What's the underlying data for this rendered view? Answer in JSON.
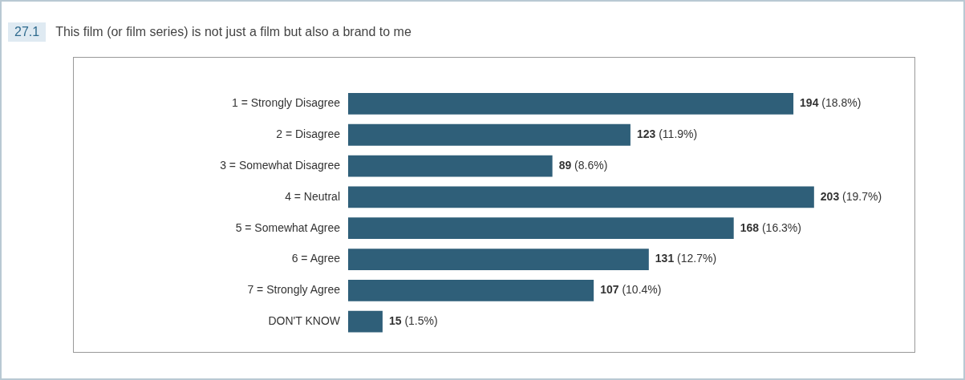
{
  "chart_data": {
    "type": "bar",
    "orientation": "horizontal",
    "title": "This film (or film series) is not just a film but also a brand to me",
    "annotations": [
      "27.1"
    ],
    "categories": [
      "1 = Strongly Disagree",
      "2 = Disagree",
      "3 = Somewhat Disagree",
      "4 = Neutral",
      "5 = Somewhat Agree",
      "6 = Agree",
      "7 = Strongly Agree",
      "DON'T KNOW"
    ],
    "values": [
      194,
      123,
      89,
      203,
      168,
      131,
      107,
      15
    ],
    "value_labels": [
      "194 (18.8%)",
      "123 (11.9%)",
      "89 (8.6%)",
      "203 (19.7%)",
      "168 (16.3%)",
      "131 (12.7%)",
      "107 (10.4%)",
      "15 (1.5%)"
    ],
    "color": "#2f5f79"
  }
}
